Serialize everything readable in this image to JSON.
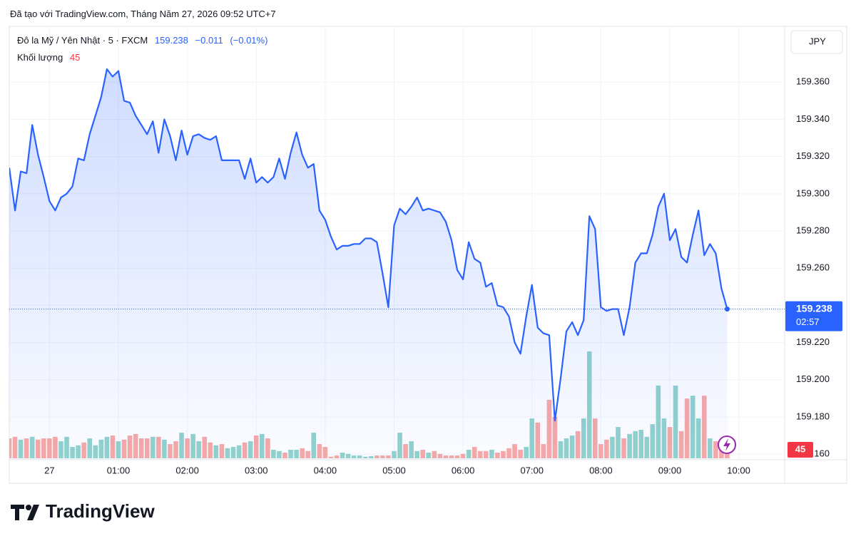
{
  "source": "Đã tạo với TradingView.com, Tháng Năm 27, 2026 09:52 UTC+7",
  "brand": "TradingView",
  "chart_data": {
    "type": "line",
    "currency": "JPY",
    "countdown": "02:57",
    "change": {
      "value": -0.011,
      "label": "−0.011"
    },
    "change_percent": {
      "value": -0.01,
      "label": "(−0.01%)"
    },
    "xlim": [
      -35,
      640
    ],
    "xticks": [
      {
        "value": 0,
        "label": "27"
      },
      {
        "value": 60,
        "label": "01:00"
      },
      {
        "value": 120,
        "label": "02:00"
      },
      {
        "value": 180,
        "label": "03:00"
      },
      {
        "value": 240,
        "label": "04:00"
      },
      {
        "value": 300,
        "label": "05:00"
      },
      {
        "value": 360,
        "label": "06:00"
      },
      {
        "value": 420,
        "label": "07:00"
      },
      {
        "value": 480,
        "label": "08:00"
      },
      {
        "value": 540,
        "label": "09:00"
      },
      {
        "value": 600,
        "label": "10:00"
      }
    ],
    "ylim": [
      159.157,
      159.39
    ],
    "yticks": [
      {
        "value": 159.16,
        "label": "159.160"
      },
      {
        "value": 159.18,
        "label": "159.180"
      },
      {
        "value": 159.2,
        "label": "159.200"
      },
      {
        "value": 159.22,
        "label": "159.220"
      },
      {
        "value": 159.24,
        "label": "159.240"
      },
      {
        "value": 159.26,
        "label": "159.260"
      },
      {
        "value": 159.28,
        "label": "159.280"
      },
      {
        "value": 159.3,
        "label": "159.300"
      },
      {
        "value": 159.32,
        "label": "159.320"
      },
      {
        "value": 159.34,
        "label": "159.340"
      },
      {
        "value": 159.36,
        "label": "159.360"
      }
    ],
    "grid": true,
    "x": [
      -35,
      -30,
      -25,
      -20,
      -15,
      -10,
      -5,
      0,
      5,
      10,
      15,
      20,
      25,
      30,
      35,
      40,
      45,
      50,
      55,
      60,
      65,
      70,
      75,
      80,
      85,
      90,
      95,
      100,
      105,
      110,
      115,
      120,
      125,
      130,
      135,
      140,
      145,
      150,
      155,
      160,
      165,
      170,
      175,
      180,
      185,
      190,
      195,
      200,
      205,
      210,
      215,
      220,
      225,
      230,
      235,
      240,
      245,
      250,
      255,
      260,
      265,
      270,
      275,
      280,
      285,
      290,
      295,
      300,
      305,
      310,
      315,
      320,
      325,
      330,
      335,
      340,
      345,
      350,
      355,
      360,
      365,
      370,
      375,
      380,
      385,
      390,
      395,
      400,
      405,
      410,
      415,
      420,
      425,
      430,
      435,
      440,
      445,
      450,
      455,
      460,
      465,
      470,
      475,
      480,
      485,
      490,
      495,
      500,
      505,
      510,
      515,
      520,
      525,
      530,
      535,
      540,
      545,
      550,
      555,
      560,
      565,
      570,
      575,
      580,
      585,
      590
    ],
    "series": [
      {
        "name": "Đô la Mỹ / Yên Nhật · 5 · FXCM",
        "color": "#2962ff",
        "values": [
          159.314,
          159.291,
          159.312,
          159.311,
          159.337,
          159.321,
          159.309,
          159.296,
          159.291,
          159.298,
          159.3,
          159.304,
          159.319,
          159.318,
          159.332,
          159.342,
          159.352,
          159.367,
          159.363,
          159.366,
          159.35,
          159.349,
          159.342,
          159.337,
          159.332,
          159.339,
          159.322,
          159.34,
          159.331,
          159.318,
          159.334,
          159.321,
          159.331,
          159.332,
          159.33,
          159.329,
          159.331,
          159.318,
          159.318,
          159.318,
          159.318,
          159.308,
          159.319,
          159.306,
          159.309,
          159.306,
          159.309,
          159.319,
          159.308,
          159.322,
          159.333,
          159.321,
          159.314,
          159.316,
          159.291,
          159.286,
          159.277,
          159.27,
          159.272,
          159.272,
          159.273,
          159.273,
          159.276,
          159.276,
          159.274,
          159.257,
          159.239,
          159.283,
          159.292,
          159.289,
          159.293,
          159.298,
          159.291,
          159.292,
          159.291,
          159.29,
          159.285,
          159.275,
          159.259,
          159.254,
          159.274,
          159.265,
          159.263,
          159.25,
          159.252,
          159.24,
          159.239,
          159.234,
          159.22,
          159.214,
          159.234,
          159.251,
          159.228,
          159.225,
          159.224,
          159.178,
          159.201,
          159.226,
          159.231,
          159.224,
          159.232,
          159.288,
          159.281,
          159.239,
          159.237,
          159.238,
          159.238,
          159.224,
          159.239,
          159.263,
          159.268,
          159.268,
          159.278,
          159.293,
          159.3,
          159.275,
          159.281,
          159.266,
          159.263,
          159.278,
          159.291,
          159.267,
          159.273,
          159.268,
          159.249,
          159.238
        ]
      },
      {
        "name": "Khối lượng",
        "up_color": "#92d2cc",
        "down_color": "#f7a9a7",
        "values": [
          63,
          68,
          59,
          63,
          68,
          59,
          63,
          63,
          68,
          54,
          68,
          36,
          41,
          50,
          63,
          41,
          59,
          68,
          72,
          54,
          59,
          72,
          77,
          63,
          63,
          68,
          68,
          59,
          45,
          54,
          81,
          63,
          77,
          54,
          68,
          50,
          41,
          45,
          32,
          36,
          41,
          50,
          54,
          72,
          77,
          63,
          27,
          23,
          18,
          27,
          27,
          32,
          23,
          81,
          45,
          36,
          5,
          9,
          18,
          14,
          9,
          9,
          5,
          7,
          9,
          9,
          9,
          23,
          81,
          45,
          54,
          23,
          27,
          18,
          23,
          14,
          9,
          9,
          9,
          14,
          27,
          36,
          23,
          23,
          27,
          18,
          23,
          32,
          45,
          27,
          36,
          126,
          113,
          45,
          185,
          131,
          54,
          63,
          72,
          86,
          126,
          338,
          126,
          45,
          59,
          68,
          99,
          63,
          77,
          86,
          90,
          68,
          108,
          230,
          126,
          99,
          230,
          86,
          189,
          198,
          126,
          198,
          63,
          54,
          41,
          45
        ]
      }
    ]
  }
}
